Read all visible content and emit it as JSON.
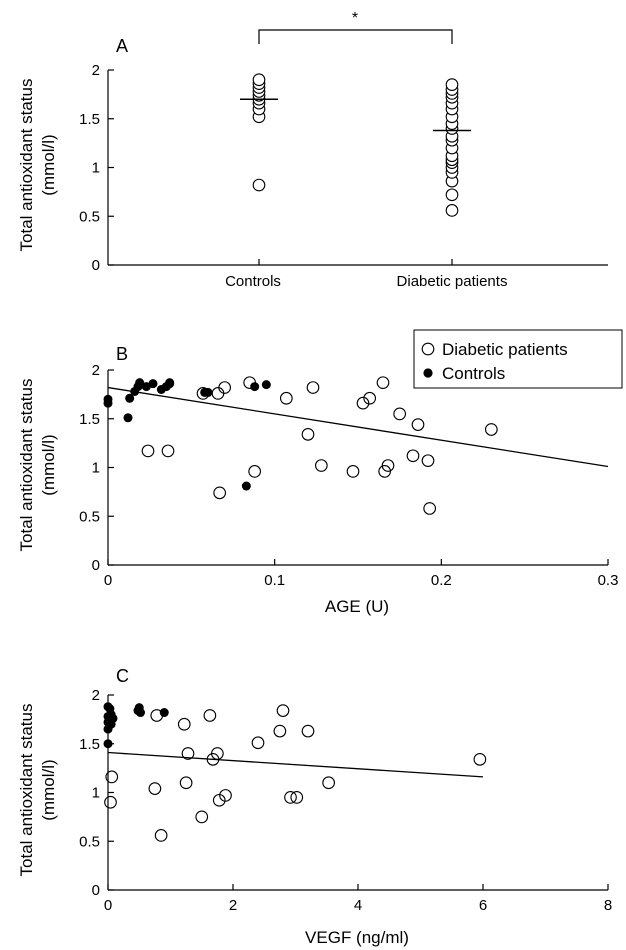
{
  "chart_data": [
    {
      "panel": "A",
      "type": "scatter",
      "ylabel": [
        "Total antioxidant status",
        "(mmol/l)"
      ],
      "ylim": [
        0,
        2
      ],
      "yticks": [
        "0",
        "0.5",
        "1",
        "1.5",
        "2"
      ],
      "categories": [
        "Controls",
        "Diabetic patients"
      ],
      "significance_marker": "*",
      "series": [
        {
          "category": "Controls",
          "marker": "open-circle",
          "mean": 1.7,
          "values": [
            0.82,
            1.52,
            1.6,
            1.66,
            1.7,
            1.74,
            1.78,
            1.82,
            1.86,
            1.9
          ]
        },
        {
          "category": "Diabetic patients",
          "marker": "open-circle",
          "mean": 1.38,
          "values": [
            0.56,
            0.72,
            0.86,
            0.95,
            1.0,
            1.05,
            1.08,
            1.12,
            1.2,
            1.28,
            1.32,
            1.4,
            1.45,
            1.52,
            1.6,
            1.66,
            1.72,
            1.76,
            1.8,
            1.85
          ]
        }
      ]
    },
    {
      "panel": "B",
      "type": "scatter",
      "xlabel": "AGE (U)",
      "ylabel": [
        "Total antioxidant status",
        "(mmol/l)"
      ],
      "xlim": [
        0,
        0.3
      ],
      "ylim": [
        0,
        2
      ],
      "xticks": [
        "0",
        "0.1",
        "0.2",
        "0.3"
      ],
      "yticks": [
        "0",
        "0.5",
        "1",
        "1.5",
        "2"
      ],
      "legend": {
        "position": "top-right",
        "entries": [
          "Diabetic patients",
          "Controls"
        ]
      },
      "series": [
        {
          "name": "Diabetic patients",
          "marker": "open-circle",
          "x": [
            0.024,
            0.036,
            0.057,
            0.066,
            0.067,
            0.07,
            0.085,
            0.088,
            0.107,
            0.12,
            0.123,
            0.128,
            0.147,
            0.153,
            0.157,
            0.165,
            0.166,
            0.168,
            0.175,
            0.183,
            0.186,
            0.192,
            0.193,
            0.23
          ],
          "y": [
            1.17,
            1.17,
            1.76,
            1.76,
            0.74,
            1.82,
            1.87,
            0.96,
            1.71,
            1.34,
            1.82,
            1.02,
            0.96,
            1.66,
            1.71,
            1.87,
            0.96,
            1.02,
            1.55,
            1.12,
            1.44,
            1.07,
            0.58,
            1.39
          ]
        },
        {
          "name": "Controls",
          "marker": "filled-circle",
          "x": [
            0,
            0,
            0.012,
            0.013,
            0.016,
            0.018,
            0.019,
            0.023,
            0.027,
            0.032,
            0.035,
            0.037,
            0.037,
            0.058,
            0.06,
            0.083,
            0.088,
            0.095
          ],
          "y": [
            1.66,
            1.7,
            1.51,
            1.71,
            1.78,
            1.83,
            1.87,
            1.83,
            1.86,
            1.8,
            1.83,
            1.87,
            1.86,
            1.77,
            1.77,
            0.81,
            1.83,
            1.85
          ]
        }
      ],
      "regression": {
        "x": [
          0,
          0.3
        ],
        "y": [
          1.82,
          1.01
        ]
      }
    },
    {
      "panel": "C",
      "type": "scatter",
      "xlabel": "VEGF (ng/ml)",
      "ylabel": [
        "Total antioxidant status",
        "(mmol/l)"
      ],
      "xlim": [
        0,
        8
      ],
      "ylim": [
        0,
        2
      ],
      "xticks": [
        "0",
        "2",
        "4",
        "6",
        "8"
      ],
      "yticks": [
        "0",
        "0.5",
        "1",
        "1.5",
        "2"
      ],
      "series": [
        {
          "name": "Diabetic patients",
          "marker": "open-circle",
          "x": [
            0.04,
            0.06,
            0.75,
            0.78,
            0.85,
            1.22,
            1.25,
            1.28,
            1.5,
            1.63,
            1.68,
            1.75,
            1.78,
            1.88,
            2.4,
            2.75,
            2.8,
            2.92,
            3.02,
            3.2,
            3.53,
            5.95
          ],
          "y": [
            0.9,
            1.16,
            1.04,
            1.79,
            0.56,
            1.7,
            1.1,
            1.4,
            0.75,
            1.79,
            1.34,
            1.4,
            0.92,
            0.97,
            1.51,
            1.63,
            1.84,
            0.95,
            0.95,
            1.63,
            1.1,
            1.34
          ]
        },
        {
          "name": "Controls",
          "marker": "filled-circle",
          "x": [
            0,
            0,
            0,
            0,
            0,
            0.03,
            0.05,
            0.05,
            0.08,
            0.48,
            0.5,
            0.52,
            0.9
          ],
          "y": [
            1.5,
            1.65,
            1.72,
            1.78,
            1.88,
            1.86,
            1.7,
            1.8,
            1.76,
            1.84,
            1.87,
            1.82,
            1.82
          ]
        }
      ],
      "regression": {
        "x": [
          0,
          6
        ],
        "y": [
          1.41,
          1.16
        ]
      }
    }
  ]
}
